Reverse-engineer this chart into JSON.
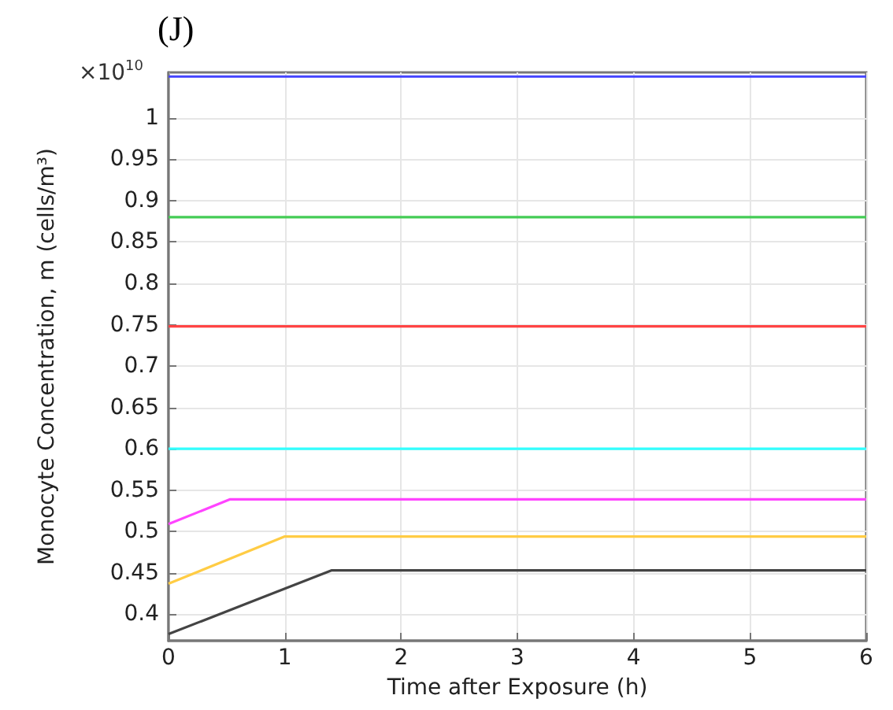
{
  "chart_data": {
    "type": "line",
    "title": "(J)",
    "xlabel": "Time after Exposure (h)",
    "ylabel": "Monocyte Concentration, m (cells/m³)",
    "annotations": [
      "×10$^{10}$"
    ],
    "series": [
      {
        "color": "#4444ff",
        "x": [
          0,
          6
        ],
        "values": [
          1.05,
          1.05
        ]
      },
      {
        "color": "#44cc55",
        "x": [
          0,
          6
        ],
        "values": [
          0.88,
          0.88
        ]
      },
      {
        "color": "#ff4444",
        "x": [
          0,
          6
        ],
        "values": [
          0.748,
          0.748
        ]
      },
      {
        "color": "#33ffff",
        "x": [
          0,
          6
        ],
        "values": [
          0.6,
          0.6
        ]
      },
      {
        "color": "#ff44ff",
        "x": [
          0,
          0.53,
          6
        ],
        "values": [
          0.509,
          0.539,
          0.539
        ]
      },
      {
        "color": "#ffcc44",
        "x": [
          0,
          1.0,
          6
        ],
        "values": [
          0.437,
          0.494,
          0.494
        ]
      },
      {
        "color": "#444444",
        "x": [
          0,
          1.4,
          6
        ],
        "values": [
          0.376,
          0.453,
          0.453
        ]
      }
    ],
    "xlim": [
      0,
      6
    ],
    "xticks": [
      0,
      1,
      2,
      3,
      4,
      5,
      6
    ],
    "ylim": [
      0.368,
      1.055
    ],
    "yticks": [
      0.4,
      0.45,
      0.5,
      0.55,
      0.6,
      0.65,
      0.7,
      0.75,
      0.8,
      0.85,
      0.9,
      0.95,
      1
    ],
    "grid": true,
    "marker": "none",
    "line_style": "solid"
  }
}
